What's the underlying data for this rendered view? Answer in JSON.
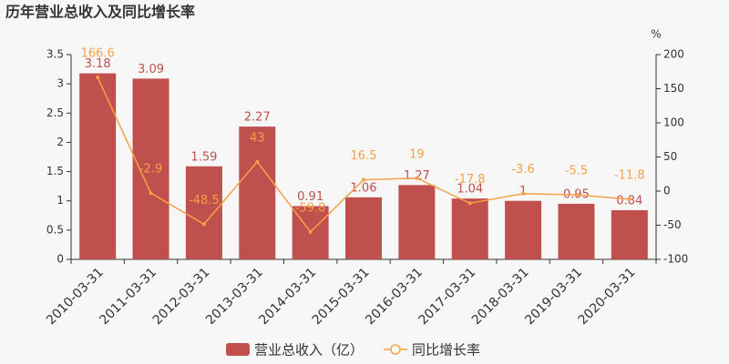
{
  "chart_data": {
    "type": "bar",
    "title": "历年营业总收入及同比增长率",
    "categories": [
      "2010-03-31",
      "2011-03-31",
      "2012-03-31",
      "2013-03-31",
      "2014-03-31",
      "2015-03-31",
      "2016-03-31",
      "2017-03-31",
      "2018-03-31",
      "2019-03-31",
      "2020-03-31"
    ],
    "series": [
      {
        "name": "营业总收入（亿）",
        "type": "bar",
        "color": "#c0504d",
        "values": [
          3.18,
          3.09,
          1.59,
          2.27,
          0.91,
          1.06,
          1.27,
          1.04,
          1,
          0.95,
          0.84
        ]
      },
      {
        "name": "同比增长率",
        "type": "line",
        "axis": "y2",
        "color": "#f5a04a",
        "values": [
          166.6,
          -2.9,
          -48.5,
          43,
          -59.8,
          16.5,
          19,
          -17.8,
          -3.6,
          -5.5,
          -11.8
        ]
      }
    ],
    "ylim": [
      0,
      3.5
    ],
    "yticks": [
      0,
      0.5,
      1,
      1.5,
      2,
      2.5,
      3,
      3.5
    ],
    "y2lim": [
      -100,
      200
    ],
    "y2ticks": [
      -100,
      -50,
      0,
      50,
      100,
      150,
      200
    ],
    "y2label": "%",
    "legend": "bottom"
  }
}
